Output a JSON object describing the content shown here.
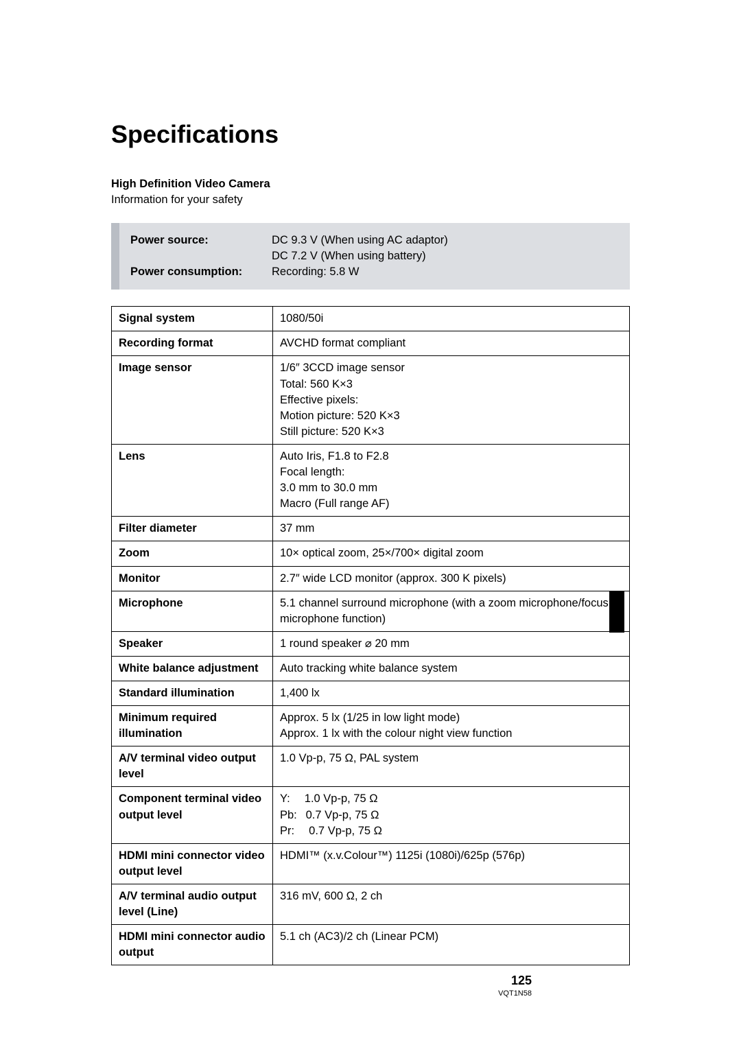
{
  "title": "Specifications",
  "subtitle_bold": "High Definition Video Camera",
  "subtitle_text": "Information for your safety",
  "power": {
    "source_label": "Power source:",
    "source_value_1": "DC 9.3 V (When using AC adaptor)",
    "source_value_2": "DC 7.2 V (When using battery)",
    "consumption_label": "Power consumption:",
    "consumption_value": "Recording: 5.8 W"
  },
  "specs": [
    {
      "label": "Signal system",
      "value": "1080/50i"
    },
    {
      "label": "Recording format",
      "value": "AVCHD format compliant"
    },
    {
      "label": "Image sensor",
      "value": "1/6″ 3CCD image sensor\nTotal: 560 K×3\nEffective pixels:\nMotion picture: 520 K×3\nStill picture: 520 K×3"
    },
    {
      "label": "Lens",
      "value": "Auto Iris, F1.8 to F2.8\nFocal length:\n3.0 mm to 30.0 mm\nMacro (Full range AF)"
    },
    {
      "label": "Filter diameter",
      "value": "37 mm"
    },
    {
      "label": "Zoom",
      "value": "10× optical zoom, 25×/700× digital zoom"
    },
    {
      "label": "Monitor",
      "value": "2.7″ wide LCD monitor (approx. 300 K pixels)"
    },
    {
      "label": "Microphone",
      "value": "5.1 channel surround microphone (with a zoom microphone/focus microphone function)"
    },
    {
      "label": "Speaker",
      "value": "1 round speaker ⌀ 20 mm"
    },
    {
      "label": "White balance adjustment",
      "value": "Auto tracking white balance system"
    },
    {
      "label": "Standard illumination",
      "value": "1,400 lx"
    },
    {
      "label": "Minimum required illumination",
      "value": "Approx. 5 lx (1/25 in low light mode)\nApprox. 1 lx with the colour night view function"
    },
    {
      "label": "A/V terminal video output level",
      "value": "1.0 Vp-p, 75 Ω, PAL system"
    },
    {
      "label": "Component terminal video output level",
      "value": "Y:  1.0 Vp-p, 75 Ω\nPb:  0.7 Vp-p, 75 Ω\nPr:  0.7 Vp-p, 75 Ω"
    },
    {
      "label": "HDMI mini connector video output level",
      "value": "HDMI™ (x.v.Colour™) 1125i (1080i)/625p (576p)"
    },
    {
      "label": "A/V terminal audio output level (Line)",
      "value": "316 mV, 600 Ω, 2 ch"
    },
    {
      "label": "HDMI mini connector audio output",
      "value": "5.1 ch (AC3)/2 ch (Linear PCM)"
    }
  ],
  "page_number": "125",
  "doc_code": "VQT1N58",
  "colors": {
    "power_bg": "#dcdee2",
    "power_border": "#b9bdc4",
    "text": "#000000",
    "page_bg": "#ffffff",
    "table_border": "#000000"
  },
  "fonts": {
    "title_size": 36,
    "body_size": 16.5,
    "page_num_size": 18,
    "doc_code_size": 11
  }
}
